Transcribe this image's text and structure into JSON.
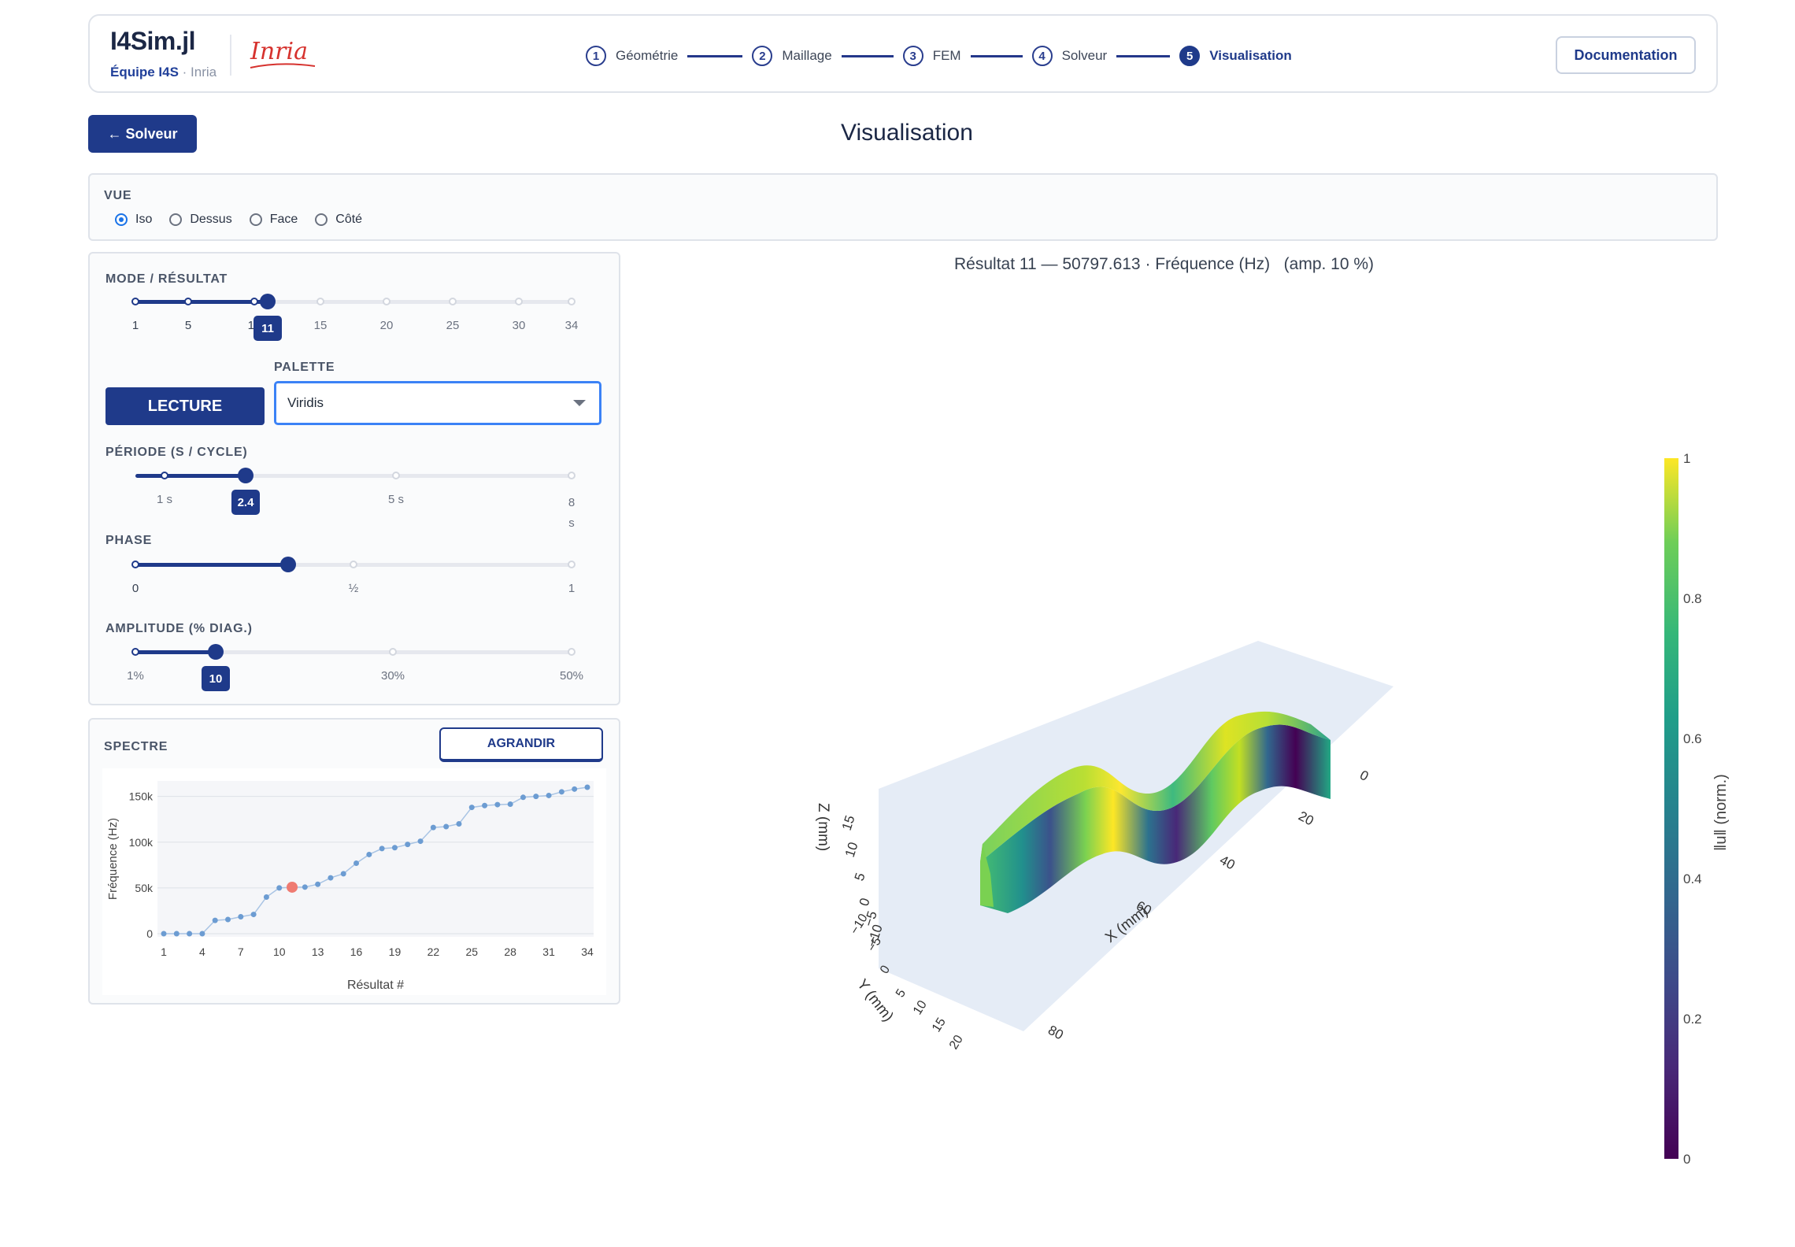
{
  "header": {
    "app_name": "I4Sim.jl",
    "team": "Équipe I4S",
    "team_sep": "· Inria",
    "logo_text": "Inria",
    "steps": [
      {
        "num": "1",
        "label": "Géométrie",
        "active": false
      },
      {
        "num": "2",
        "label": "Maillage",
        "active": false
      },
      {
        "num": "3",
        "label": "FEM",
        "active": false
      },
      {
        "num": "4",
        "label": "Solveur",
        "active": false
      },
      {
        "num": "5",
        "label": "Visualisation",
        "active": true
      }
    ],
    "doc_label": "Documentation"
  },
  "back_label": "← Solveur",
  "page_title": "Visualisation",
  "vue": {
    "label": "VUE",
    "options": [
      "Iso",
      "Dessus",
      "Face",
      "Côté"
    ],
    "selected": "Iso"
  },
  "controls": {
    "mode": {
      "label": "MODE / RÉSULTAT",
      "ticks": [
        "1",
        "5",
        "10",
        "15",
        "20",
        "25",
        "30",
        "34"
      ],
      "value": "11",
      "min": 1,
      "max": 34,
      "current": 11
    },
    "lecture_label": "LECTURE",
    "palette": {
      "label": "PALETTE",
      "value": "Viridis"
    },
    "periode": {
      "label": "PÉRIODE (S / CYCLE)",
      "ticks": [
        "1 s",
        "5 s",
        "8 s"
      ],
      "value": "2.4",
      "min": 0,
      "max": 8,
      "current": 2.4
    },
    "phase": {
      "label": "PHASE",
      "ticks": [
        "0",
        "½",
        "1"
      ],
      "current": 0.35
    },
    "amplitude": {
      "label": "AMPLITUDE (% DIAG.)",
      "ticks": [
        "1%",
        "30%",
        "50%"
      ],
      "value": "10",
      "min": 1,
      "max": 50,
      "current": 10
    }
  },
  "spectre": {
    "label": "SPECTRE",
    "expand_label": "AGRANDIR"
  },
  "chart_data": {
    "type": "scatter",
    "xlabel": "Résultat #",
    "ylabel": "Fréquence (Hz)",
    "x_ticks": [
      "1",
      "4",
      "7",
      "10",
      "13",
      "16",
      "19",
      "22",
      "25",
      "28",
      "31",
      "34"
    ],
    "y_ticks": [
      "0",
      "50k",
      "100k",
      "150k"
    ],
    "xlim": [
      1,
      34
    ],
    "ylim": [
      0,
      160000
    ],
    "x": [
      1,
      2,
      3,
      4,
      5,
      6,
      7,
      8,
      9,
      10,
      11,
      12,
      13,
      14,
      15,
      16,
      17,
      18,
      19,
      20,
      21,
      22,
      23,
      24,
      25,
      26,
      27,
      28,
      29,
      30,
      31,
      32,
      33,
      34
    ],
    "values": [
      0,
      0,
      0,
      0,
      14500,
      15500,
      18500,
      21000,
      40000,
      50000,
      50797,
      50900,
      54000,
      61000,
      65500,
      77000,
      86500,
      93000,
      94000,
      97500,
      101000,
      116000,
      117000,
      120000,
      138000,
      140000,
      141000,
      141500,
      149000,
      150000,
      151000,
      155000,
      158000,
      160000
    ],
    "highlight_index": 10,
    "series_color": "#6c9cd2",
    "highlight_color": "#ef7b72"
  },
  "result_caption": {
    "text": "Résultat 11 — 50797.613 · Fréquence (Hz)",
    "amp": "(amp. 10 %)"
  },
  "colorbar": {
    "title": "‖u‖ (norm.)",
    "ticks": [
      "1",
      "0.8",
      "0.6",
      "0.4",
      "0.2",
      "0"
    ],
    "palette": "Viridis"
  },
  "scene": {
    "x_axis_title": "X (mm)",
    "y_axis_title": "Y (mm)",
    "z_axis_title": "Z (mm)",
    "x_ticks": [
      "0",
      "20",
      "40",
      "60",
      "80"
    ],
    "y_ticks": [
      "−10",
      "−5",
      "0",
      "5",
      "10",
      "15",
      "20"
    ],
    "z_ticks": [
      "15",
      "10",
      "5",
      "0",
      "−5",
      "−10"
    ]
  }
}
